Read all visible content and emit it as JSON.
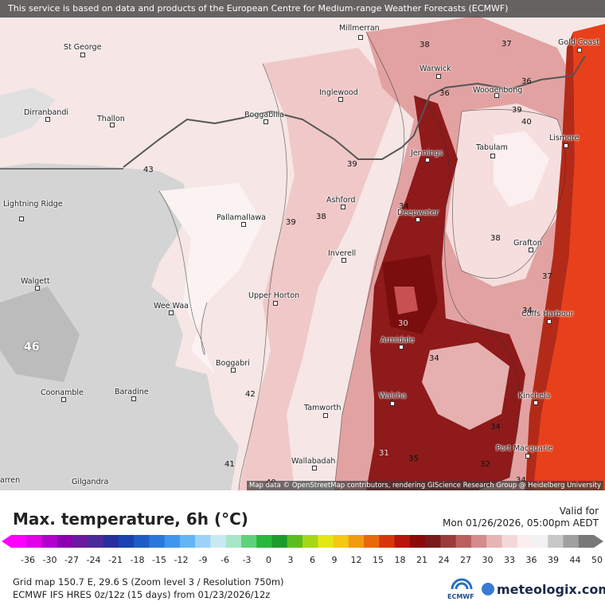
{
  "banner": "This service is based on data and products of the European Centre for Medium-range Weather Forecasts (ECMWF)",
  "attribution": "Map data © OpenStreetMap contributors, rendering GIScience Research Group @ Heidelberg University",
  "towns": [
    {
      "name": "Millmerran"
    },
    {
      "name": "St George"
    },
    {
      "name": "Gold Coast"
    },
    {
      "name": "Warwick"
    },
    {
      "name": "Woodenbong"
    },
    {
      "name": "Inglewood"
    },
    {
      "name": "Dirranbandi"
    },
    {
      "name": "Thallon"
    },
    {
      "name": "Boggabilla"
    },
    {
      "name": "Lismore"
    },
    {
      "name": "Tabulam"
    },
    {
      "name": "Jennings"
    },
    {
      "name": "Ashford"
    },
    {
      "name": "Deepwater"
    },
    {
      "name": "Lightning Ridge"
    },
    {
      "name": "Pallamallawa"
    },
    {
      "name": "Grafton"
    },
    {
      "name": "Inverell"
    },
    {
      "name": "Walgett"
    },
    {
      "name": "Upper Horton"
    },
    {
      "name": "Wee Waa"
    },
    {
      "name": "Coffs Harbour"
    },
    {
      "name": "Armidale"
    },
    {
      "name": "Boggabri"
    },
    {
      "name": "Coonamble"
    },
    {
      "name": "Baradine"
    },
    {
      "name": "Walcha"
    },
    {
      "name": "Kinchela"
    },
    {
      "name": "Tamworth"
    },
    {
      "name": "Port Macquarie"
    },
    {
      "name": "Wallabadah"
    },
    {
      "name": "Gilgandra"
    },
    {
      "name": "arren"
    }
  ],
  "contour_labels": [
    "38",
    "37",
    "36",
    "36",
    "39",
    "40",
    "43",
    "39",
    "34",
    "38",
    "39",
    "38",
    "37",
    "46",
    "30",
    "34",
    "34",
    "42",
    "34",
    "31",
    "35",
    "32",
    "41",
    "40",
    "34"
  ],
  "legend": {
    "title": "Max. temperature, 6h (°C)",
    "valid_label": "Valid for",
    "valid_date": "Mon 01/26/2026, 05:00pm AEDT",
    "ticks": [
      "-36",
      "-30",
      "-27",
      "-24",
      "-21",
      "-18",
      "-15",
      "-12",
      "-9",
      "-6",
      "-3",
      "0",
      "3",
      "6",
      "9",
      "12",
      "15",
      "18",
      "21",
      "24",
      "27",
      "30",
      "33",
      "36",
      "39",
      "44",
      "50"
    ],
    "colors": [
      "#ff00ff",
      "#e000e8",
      "#b400cc",
      "#8c00b0",
      "#6a1aa0",
      "#4b2b9a",
      "#27309c",
      "#1744b0",
      "#1e5cc8",
      "#2a78dc",
      "#3e96ec",
      "#63b6f6",
      "#9bd3f8",
      "#c9eaf4",
      "#a8e6c8",
      "#5ed27a",
      "#28b83c",
      "#1b9c2a",
      "#5cbe1e",
      "#a6d614",
      "#e3e812",
      "#f5c812",
      "#f29a10",
      "#e8680c",
      "#d8360a",
      "#b8140c",
      "#8c0a0a",
      "#7a1a1a",
      "#9c3a3a",
      "#bb5e5e",
      "#d48b8b",
      "#e8b4b4",
      "#f4d8d8",
      "#fbeeee",
      "#f2f2f2",
      "#c8c8c8",
      "#a0a0a0",
      "#787878"
    ],
    "accent_map_hot": "#e8401a",
    "accent_map_dark": "#7a0e0e"
  },
  "footer": {
    "grid_info": "Grid map 150.7 E, 29.6 S (Zoom level 3 / Resolution 750m)",
    "model_info": "ECMWF IFS HRES 0z/12z (15 days) from  01/23/2026/12z",
    "ecmwf_logo": "ECMWF",
    "brand": "meteologix.com"
  }
}
